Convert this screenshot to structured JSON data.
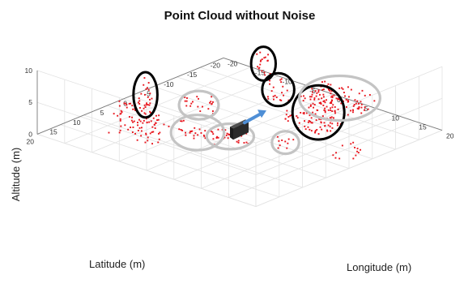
{
  "chart_data": {
    "type": "scatter",
    "subtype": "3d-point-cloud",
    "title": "Point Cloud without Noise",
    "xlabel": "Longitude (m)",
    "ylabel": "Latitude (m)",
    "zlabel": "Altitude (m)",
    "xlim": [
      -20,
      20
    ],
    "ylim": [
      -20,
      20
    ],
    "zlim": [
      0,
      10
    ],
    "xticks": [
      -20,
      -15,
      -10,
      -5,
      0,
      5,
      10,
      15,
      20
    ],
    "yticks": [
      20,
      15,
      10,
      5,
      0,
      -5,
      -10,
      -15,
      -20
    ],
    "zticks": [
      0,
      5,
      10
    ],
    "grid": true,
    "point_color": "#e8141c",
    "marker_colors": {
      "black_circle": "#000000",
      "gray_circle": "#c4c4c4",
      "vehicle": "#2a2a2a",
      "heading_arrow": "#4f8fd6"
    },
    "clusters": [
      {
        "id": "c1",
        "marker": "none",
        "center": [
          -6,
          15,
          4.5
        ],
        "spread": [
          4,
          2.5,
          2.5
        ],
        "count": 90
      },
      {
        "id": "c2",
        "marker": "black_circle",
        "center": [
          -12,
          6,
          4
        ],
        "spread": [
          1,
          1,
          2.5
        ],
        "count": 20
      },
      {
        "id": "c3",
        "marker": "gray_circle",
        "center": [
          -3,
          5.5,
          0.6
        ],
        "spread": [
          4,
          0.8,
          1
        ],
        "count": 30
      },
      {
        "id": "c4",
        "marker": "gray_circle",
        "center": [
          1,
          3,
          0.6
        ],
        "spread": [
          3,
          0.8,
          1
        ],
        "count": 25
      },
      {
        "id": "c5",
        "marker": "gray_circle",
        "center": [
          8,
          0,
          0.8
        ],
        "spread": [
          1.2,
          1.2,
          1
        ],
        "count": 10
      },
      {
        "id": "c6",
        "marker": "gray_circle",
        "center": [
          -10,
          -3,
          0.8
        ],
        "spread": [
          3,
          1,
          1.5
        ],
        "count": 22
      },
      {
        "id": "c7",
        "marker": "black_circle",
        "center": [
          7.5,
          -8,
          2.5
        ],
        "spread": [
          3,
          1.5,
          3
        ],
        "count": 70
      },
      {
        "id": "c8",
        "marker": "black_circle",
        "center": [
          -11,
          -18,
          2
        ],
        "spread": [
          1,
          1,
          2
        ],
        "count": 18
      },
      {
        "id": "c9",
        "marker": "black_circle",
        "center": [
          -4,
          -13,
          1.5
        ],
        "spread": [
          1.5,
          1,
          2
        ],
        "count": 20
      },
      {
        "id": "c10",
        "marker": "gray_circle",
        "center": [
          3,
          -18,
          0.8
        ],
        "spread": [
          5,
          3,
          1.5
        ],
        "count": 90
      },
      {
        "id": "c11",
        "marker": "none",
        "center": [
          5,
          -10,
          0.5
        ],
        "spread": [
          4,
          3,
          1
        ],
        "count": 40
      },
      {
        "id": "c12",
        "marker": "none",
        "center": [
          17,
          -4,
          0.5
        ],
        "spread": [
          2.5,
          2.5,
          1
        ],
        "count": 14
      }
    ],
    "vehicle": {
      "center": [
        0,
        0,
        0.6
      ],
      "heading": "+x"
    }
  }
}
